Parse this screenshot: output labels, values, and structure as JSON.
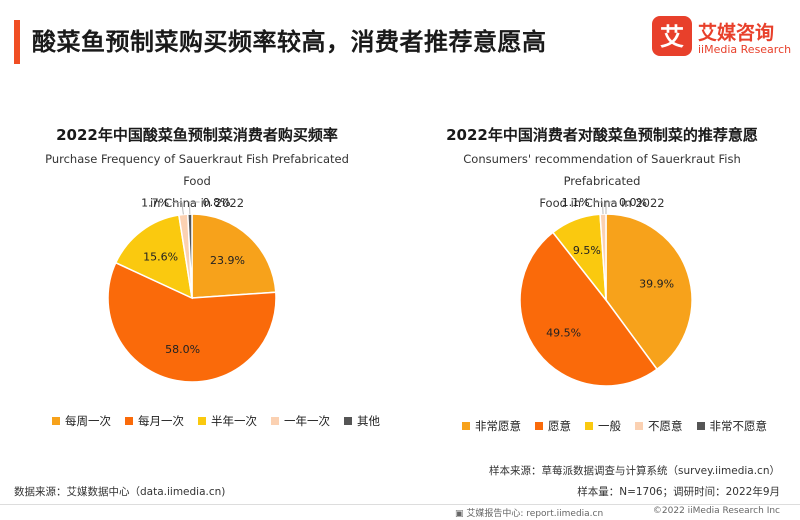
{
  "page": {
    "title": "酸菜鱼预制菜购买频率较高，消费者推荐意愿高"
  },
  "logo": {
    "glyph": "艾",
    "name_cn": "艾媒咨询",
    "name_en": "iiMedia Research",
    "color": "#e8402b"
  },
  "chart_data": [
    {
      "type": "pie",
      "title": "2022年中国酸菜鱼预制菜消费者购买频率",
      "subtitle_lines": [
        "Purchase Frequency of Sauerkraut Fish Prefabricated Food",
        "in China in 2022"
      ],
      "unit": "%",
      "slices": [
        {
          "label": "每周一次",
          "value": 23.9,
          "color": "#f7a21b"
        },
        {
          "label": "每月一次",
          "value": 58.0,
          "color": "#fa6a0a"
        },
        {
          "label": "半年一次",
          "value": 15.6,
          "color": "#fac90f"
        },
        {
          "label": "一年一次",
          "value": 1.7,
          "color": "#fbd1b2"
        },
        {
          "label": "其他",
          "value": 0.8,
          "color": "#555555"
        }
      ],
      "legend_position": "bottom"
    },
    {
      "type": "pie",
      "title": "2022年中国消费者对酸菜鱼预制菜的推荐意愿",
      "subtitle_lines": [
        "Consumers' recommendation of Sauerkraut Fish Prefabricated",
        "Food in China in 2022"
      ],
      "unit": "%",
      "slices": [
        {
          "label": "非常愿意",
          "value": 39.9,
          "color": "#f7a21b"
        },
        {
          "label": "愿意",
          "value": 49.5,
          "color": "#fa6a0a"
        },
        {
          "label": "一般",
          "value": 9.5,
          "color": "#fac90f"
        },
        {
          "label": "不愿意",
          "value": 1.1,
          "color": "#fbd1b2"
        },
        {
          "label": "非常不愿意",
          "value": 0.0,
          "color": "#555555"
        }
      ],
      "legend_position": "bottom"
    }
  ],
  "notes": {
    "sample_source": "样本来源：草莓派数据调查与计算系统（survey.iimedia.cn）",
    "sample_size": "样本量：N=1706；调研时间：2022年9月",
    "data_source": "数据来源：艾媒数据中心（data.iimedia.cn)"
  },
  "footer": {
    "report_center": "艾媒报告中心: report.iimedia.cn",
    "copyright": "©2022  iiMedia Research  Inc"
  }
}
